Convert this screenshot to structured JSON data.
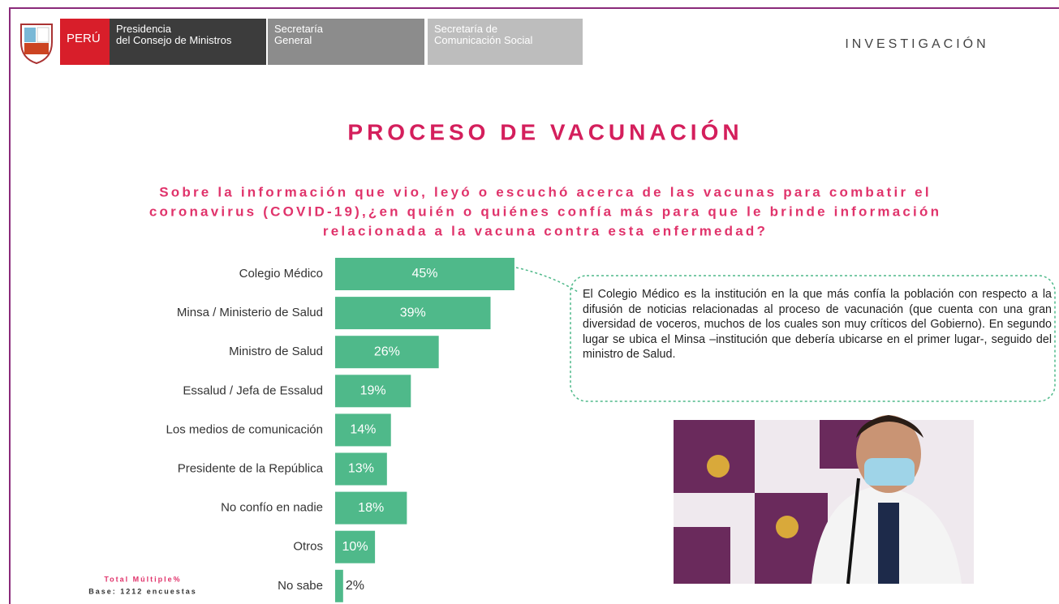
{
  "header": {
    "country": "PERÚ",
    "units": [
      "Presidencia\ndel Consejo de Ministros",
      "Secretaría\nGeneral",
      "Secretaría de\nComunicación Social"
    ],
    "section": "INVESTIGACIÓN"
  },
  "chart_data": {
    "type": "bar",
    "orientation": "horizontal",
    "title": "PROCESO DE VACUNACIÓN",
    "subtitle": [
      "Sobre la información que vio, leyó o escuchó acerca de las vacunas para combatir el",
      "coronavirus (COVID-19),¿en quién o quiénes confía más para que le brinde información",
      "relacionada a la vacuna contra esta enfermedad?"
    ],
    "categories": [
      "Colegio Médico",
      "Minsa / Ministerio de Salud",
      "Ministro de Salud",
      "Essalud / Jefa de Essalud",
      "Los medios de comunicación",
      "Presidente de la República",
      "No confío en nadie",
      "Otros",
      "No sabe"
    ],
    "values": [
      45,
      39,
      26,
      19,
      14,
      13,
      18,
      10,
      2
    ],
    "value_labels": [
      "45%",
      "39%",
      "26%",
      "19%",
      "14%",
      "13%",
      "18%",
      "10%",
      "2%"
    ],
    "color": "#4fb98a"
  },
  "note": "El Colegio Médico es la institución en la que más confía la población con respecto a la difusión de noticias relacionadas al proceso de vacunación (que cuenta con una gran diversidad de voceros, muchos de los cuales son muy críticos del Gobierno). En segundo lugar se ubica el Minsa –institución que debería ubicarse en el primer lugar-, seguido del ministro de Salud.",
  "footnote": {
    "total": "Total Múltiple%",
    "base": "Base: 1212 encuestas"
  }
}
